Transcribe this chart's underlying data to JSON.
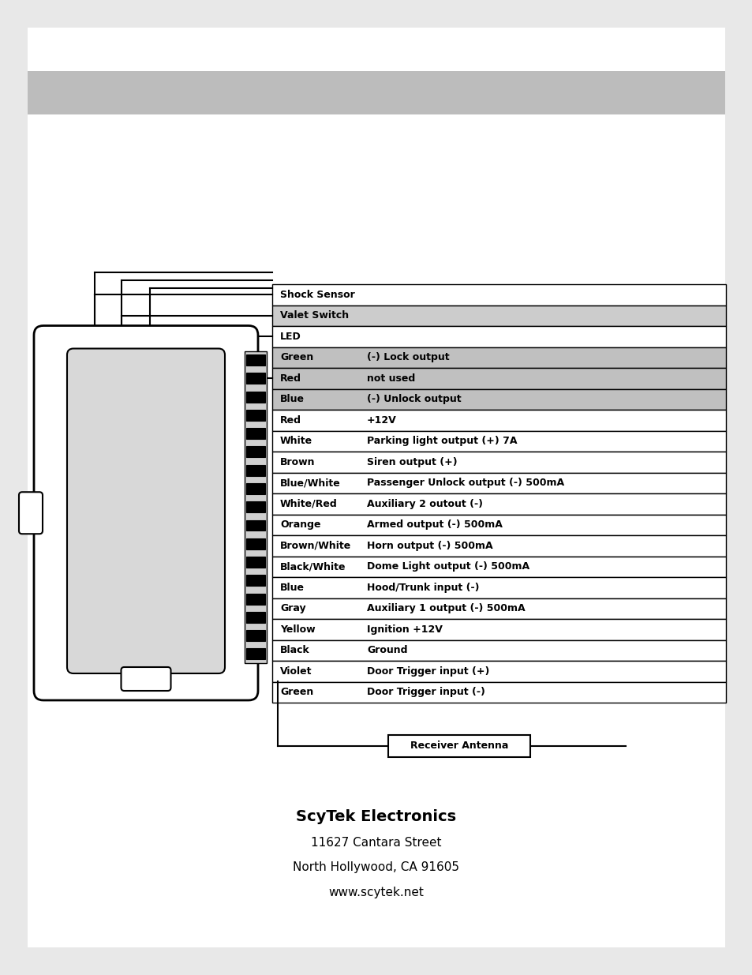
{
  "bg_top_color": "#aaaaaa",
  "page_bg": "#ffffff",
  "outer_bg": "#e8e8e8",
  "header_rows": [
    {
      "label": "Shock Sensor",
      "bg": "#ffffff"
    },
    {
      "label": "Valet Switch",
      "bg": "#cccccc"
    },
    {
      "label": "LED",
      "bg": "#ffffff"
    }
  ],
  "colored_rows": [
    {
      "wire": "Green",
      "desc": "(-) Lock output"
    },
    {
      "wire": "Red",
      "desc": "not used"
    },
    {
      "wire": "Blue",
      "desc": "(-) Unlock output"
    }
  ],
  "main_rows": [
    {
      "wire": "Red",
      "desc": "+12V"
    },
    {
      "wire": "White",
      "desc": "Parking light output (+) 7A"
    },
    {
      "wire": "Brown",
      "desc": "Siren output (+)"
    },
    {
      "wire": "Blue/White",
      "desc": "Passenger Unlock output (-) 500mA"
    },
    {
      "wire": "White/Red",
      "desc": "Auxiliary 2 outout (-)"
    },
    {
      "wire": "Orange",
      "desc": "Armed output (-) 500mA"
    },
    {
      "wire": "Brown/White",
      "desc": "Horn output (-) 500mA"
    },
    {
      "wire": "Black/White",
      "desc": "Dome Light output (-) 500mA"
    },
    {
      "wire": "Blue",
      "desc": "Hood/Trunk input (-)"
    },
    {
      "wire": "Gray",
      "desc": "Auxiliary 1 output (-) 500mA"
    },
    {
      "wire": "Yellow",
      "desc": "Ignition +12V"
    },
    {
      "wire": "Black",
      "desc": "Ground"
    },
    {
      "wire": "Violet",
      "desc": "Door Trigger input (+)"
    },
    {
      "wire": "Green",
      "desc": "Door Trigger input (-)"
    }
  ],
  "company_name": "ScyTek Electronics",
  "address1": "11627 Cantara Street",
  "address2": "North Hollywood, CA 91605",
  "website": "www.scytek.net",
  "antenna_label": "Receiver Antenna"
}
